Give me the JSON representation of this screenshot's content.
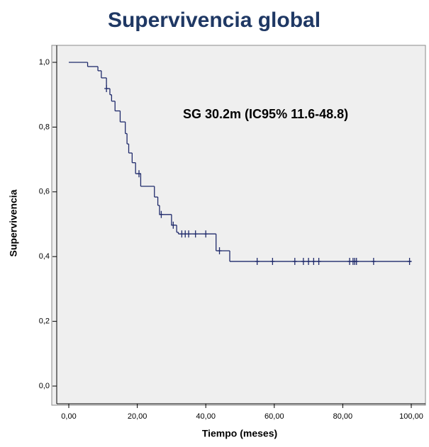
{
  "chart_data": {
    "type": "step",
    "title": "Supervivencia global",
    "annotation": "SG 30.2m (IC95% 11.6-48.8)",
    "x_label": "Tiempo (meses)",
    "y_label": "Supervivencia",
    "color": "#1f2a6b",
    "x": [
      0,
      5.5,
      8.5,
      9.5,
      11,
      12,
      12.5,
      13.5,
      15,
      16.5,
      17,
      17.5,
      18.5,
      19.5,
      21,
      25,
      26,
      26.5,
      30,
      31.5,
      32,
      43,
      47,
      100
    ],
    "values": [
      1.0,
      0.987,
      0.974,
      0.952,
      0.919,
      0.9,
      0.88,
      0.85,
      0.816,
      0.78,
      0.748,
      0.72,
      0.69,
      0.656,
      0.617,
      0.584,
      0.558,
      0.53,
      0.497,
      0.475,
      0.47,
      0.418,
      0.385,
      0.385
    ],
    "censored": {
      "x": [
        11,
        20.5,
        27,
        30.5,
        33,
        34,
        35,
        37,
        40,
        44,
        55,
        59.5,
        66,
        68.5,
        70,
        71.5,
        73,
        82,
        83,
        83.5,
        84,
        89,
        99.5
      ],
      "values": [
        0.919,
        0.656,
        0.53,
        0.497,
        0.47,
        0.47,
        0.47,
        0.47,
        0.47,
        0.418,
        0.385,
        0.385,
        0.385,
        0.385,
        0.385,
        0.385,
        0.385,
        0.385,
        0.385,
        0.385,
        0.385,
        0.385,
        0.385
      ]
    },
    "xlim": [
      0,
      100
    ],
    "xticks": [
      {
        "value": 0,
        "label": "0,00"
      },
      {
        "value": 20,
        "label": "20,00"
      },
      {
        "value": 40,
        "label": "40,00"
      },
      {
        "value": 60,
        "label": "60,00"
      },
      {
        "value": 80,
        "label": "80,00"
      },
      {
        "value": 100,
        "label": "100,00"
      }
    ],
    "ylim": [
      0,
      1
    ],
    "yticks": [
      {
        "value": 0,
        "label": "0,0"
      },
      {
        "value": 0.2,
        "label": "0,2"
      },
      {
        "value": 0.4,
        "label": "0,4"
      },
      {
        "value": 0.6,
        "label": "0,6"
      },
      {
        "value": 0.8,
        "label": "0,8"
      },
      {
        "value": 1,
        "label": "1,0"
      }
    ]
  }
}
